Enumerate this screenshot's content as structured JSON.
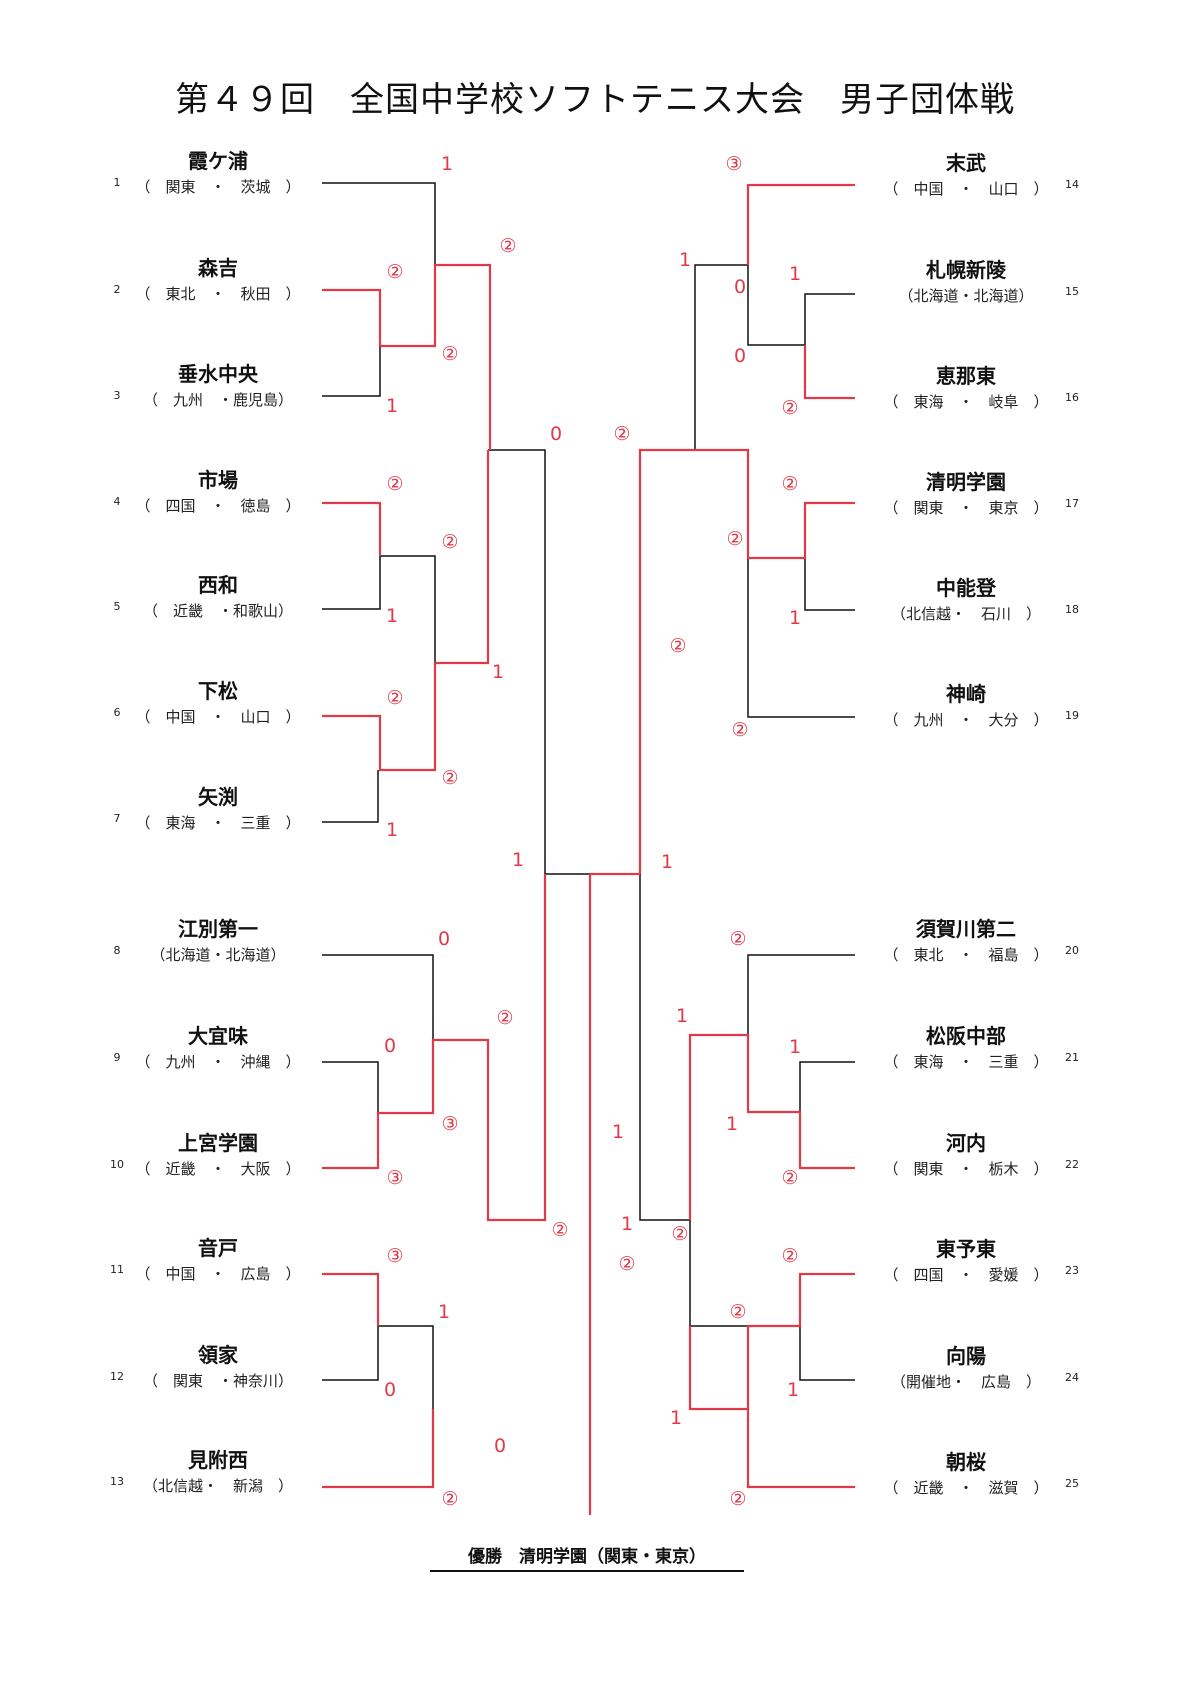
{
  "title": "第４９回　全国中学校ソフトテニス大会　男子団体戦",
  "champion": "優勝　清明学園（関東・東京）",
  "colors": {
    "winner_line": "#e0394a",
    "loser_line": "#111111",
    "score": "#e0394a"
  },
  "teams": [
    {
      "seed": "1",
      "name": "霞ケ浦",
      "region": "（　関東　・　茨城　）"
    },
    {
      "seed": "2",
      "name": "森吉",
      "region": "（　東北　・　秋田　）"
    },
    {
      "seed": "3",
      "name": "垂水中央",
      "region": "（　九州　・鹿児島）"
    },
    {
      "seed": "4",
      "name": "市場",
      "region": "（　四国　・　徳島　）"
    },
    {
      "seed": "5",
      "name": "西和",
      "region": "（　近畿　・和歌山）"
    },
    {
      "seed": "6",
      "name": "下松",
      "region": "（　中国　・　山口　）"
    },
    {
      "seed": "7",
      "name": "矢渕",
      "region": "（　東海　・　三重　）"
    },
    {
      "seed": "8",
      "name": "江別第一",
      "region": "（北海道・北海道）"
    },
    {
      "seed": "9",
      "name": "大宜味",
      "region": "（　九州　・　沖縄　）"
    },
    {
      "seed": "10",
      "name": "上宮学園",
      "region": "（　近畿　・　大阪　）"
    },
    {
      "seed": "11",
      "name": "音戸",
      "region": "（　中国　・　広島　）"
    },
    {
      "seed": "12",
      "name": "領家",
      "region": "（　関東　・神奈川）"
    },
    {
      "seed": "13",
      "name": "見附西",
      "region": "（北信越・　新潟　）"
    },
    {
      "seed": "14",
      "name": "末武",
      "region": "（　中国　・　山口　）"
    },
    {
      "seed": "15",
      "name": "札幌新陵",
      "region": "（北海道・北海道）"
    },
    {
      "seed": "16",
      "name": "恵那東",
      "region": "（　東海　・　岐阜　）"
    },
    {
      "seed": "17",
      "name": "清明学園",
      "region": "（　関東　・　東京　）"
    },
    {
      "seed": "18",
      "name": "中能登",
      "region": "（北信越・　石川　）"
    },
    {
      "seed": "19",
      "name": "神崎",
      "region": "（　九州　・　大分　）"
    },
    {
      "seed": "20",
      "name": "須賀川第二",
      "region": "（　東北　・　福島　）"
    },
    {
      "seed": "21",
      "name": "松阪中部",
      "region": "（　東海　・　三重　）"
    },
    {
      "seed": "22",
      "name": "河内",
      "region": "（　関東　・　栃木　）"
    },
    {
      "seed": "23",
      "name": "東予東",
      "region": "（　四国　・　愛媛　）"
    },
    {
      "seed": "24",
      "name": "向陽",
      "region": "（開催地・　広島　）"
    },
    {
      "seed": "25",
      "name": "朝桜",
      "region": "（　近畿　・　滋賀　）"
    }
  ],
  "scores": [
    "1",
    "②",
    "②",
    "1",
    "②",
    "②",
    "0",
    "②",
    "1",
    "1",
    "②",
    "②",
    "1",
    "1",
    "1",
    "②",
    "0",
    "②",
    "0",
    "③",
    "③",
    "③",
    "1",
    "0",
    "0",
    "②",
    "②",
    "③",
    "0",
    "1",
    "0",
    "②",
    "②",
    "②",
    "1",
    "②",
    "②",
    "1",
    "1",
    "②",
    "1",
    "1",
    "1",
    "②",
    "②",
    "②",
    "1",
    "1",
    "②",
    "②",
    "1",
    "②"
  ]
}
